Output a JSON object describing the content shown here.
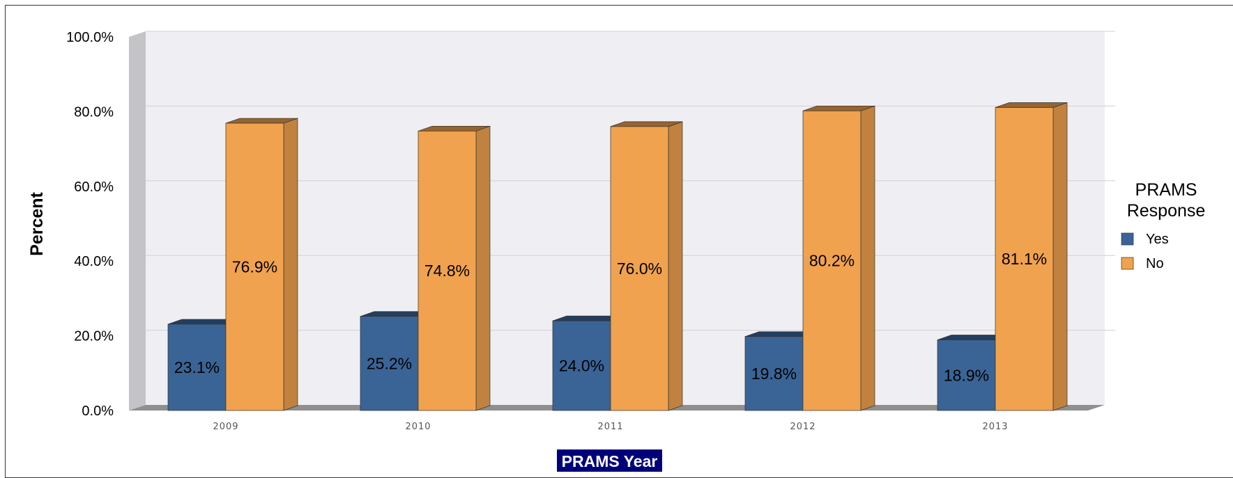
{
  "chart_data": {
    "type": "bar",
    "categories": [
      "2009",
      "2010",
      "2011",
      "2012",
      "2013"
    ],
    "series": [
      {
        "name": "Yes",
        "values": [
          23.1,
          25.2,
          24.0,
          19.8,
          18.9
        ],
        "labels": [
          "23.1%",
          "25.2%",
          "24.0%",
          "19.8%",
          "18.9%"
        ],
        "color": "#3a6496"
      },
      {
        "name": "No",
        "values": [
          76.9,
          74.8,
          76.0,
          80.2,
          81.1
        ],
        "labels": [
          "76.9%",
          "74.8%",
          "76.0%",
          "80.2%",
          "81.1%"
        ],
        "color": "#f0a24e"
      }
    ],
    "xlabel": "PRAMS Year",
    "ylabel": "Percent",
    "ylim": [
      0,
      100
    ],
    "yticks": [
      "0.0%",
      "20.0%",
      "40.0%",
      "60.0%",
      "80.0%",
      "100.0%"
    ],
    "legend_title": [
      "PRAMS",
      "Response"
    ],
    "legend_placement": "right",
    "grid": true,
    "style": "3d"
  }
}
